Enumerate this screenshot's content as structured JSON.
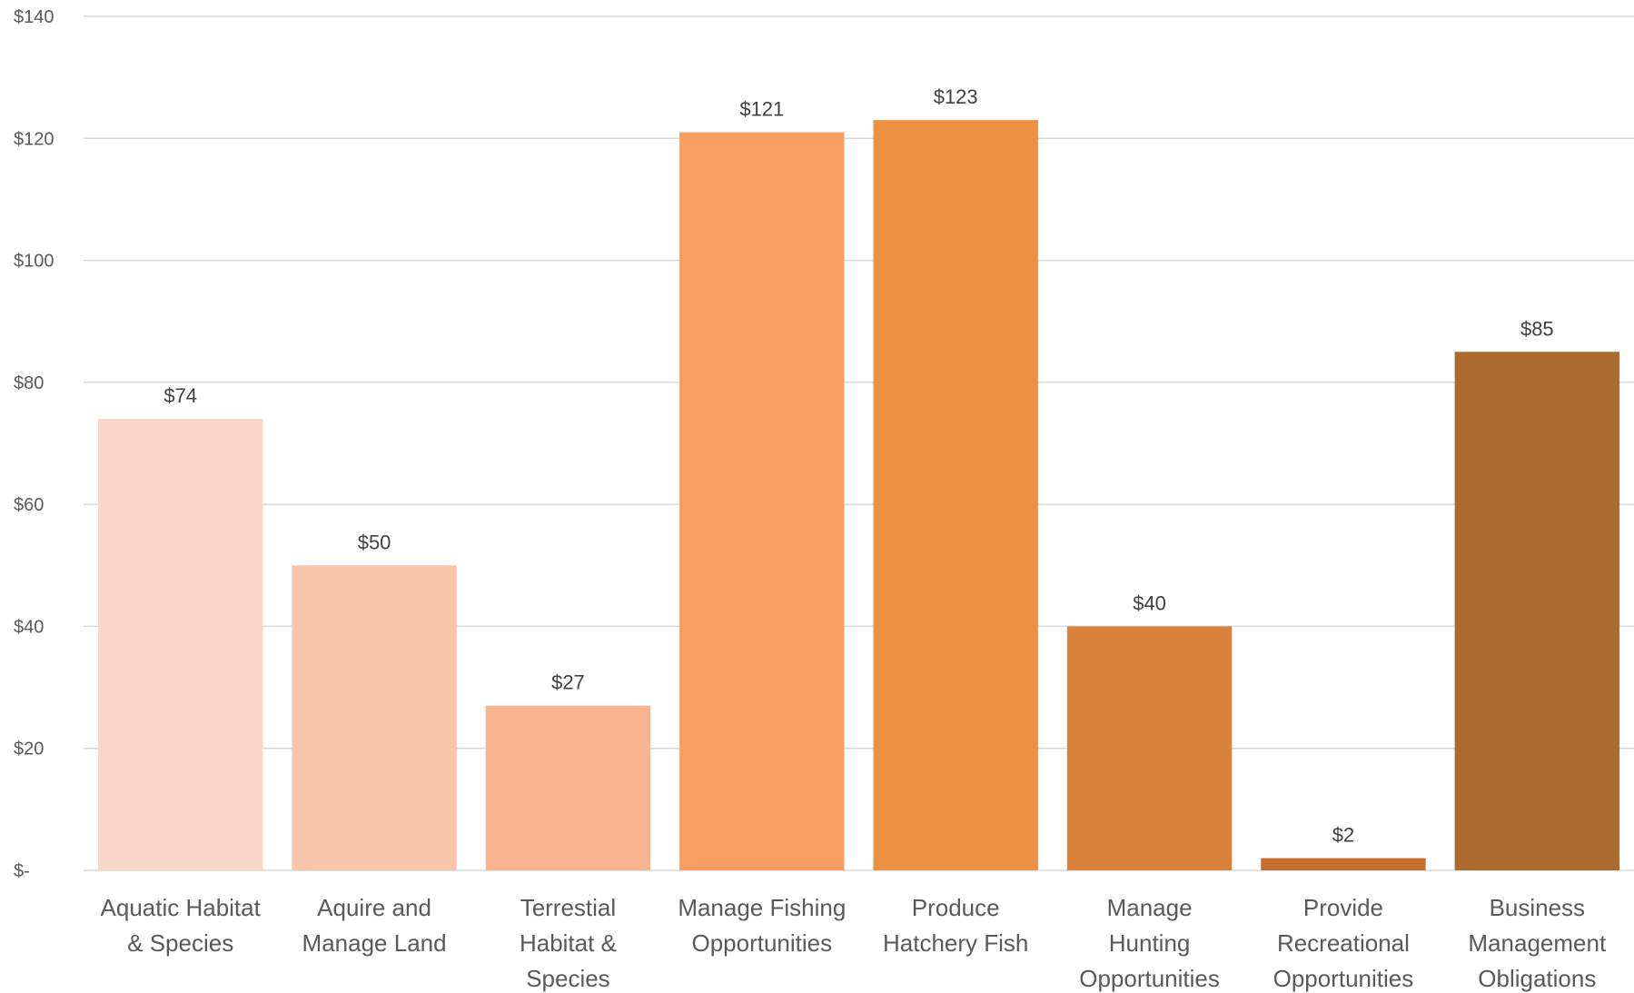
{
  "chart_data": {
    "type": "bar",
    "title": "",
    "xlabel": "",
    "ylabel": "",
    "ylim": [
      0,
      140
    ],
    "grid": true,
    "y_ticks": [
      {
        "value": 0,
        "label": "$-"
      },
      {
        "value": 20,
        "label": "$20"
      },
      {
        "value": 40,
        "label": "$40"
      },
      {
        "value": 60,
        "label": "$60"
      },
      {
        "value": 80,
        "label": "$80"
      },
      {
        "value": 100,
        "label": "$100"
      },
      {
        "value": 120,
        "label": "$120"
      },
      {
        "value": 140,
        "label": "$140"
      }
    ],
    "categories": [
      "Aquatic Habitat & Species",
      "Aquire and Manage Land",
      "Terrestial Habitat & Species",
      "Manage Fishing Opportunities",
      "Produce Hatchery Fish",
      "Manage Hunting Opportunities",
      "Provide Recreational Opportunities",
      "Business Management Obligations"
    ],
    "category_label_lines": [
      [
        "Aquatic Habitat",
        "& Species"
      ],
      [
        "Aquire and",
        "Manage Land"
      ],
      [
        "Terrestial",
        "Habitat &",
        "Species"
      ],
      [
        "Manage Fishing",
        "Opportunities"
      ],
      [
        "Produce",
        "Hatchery Fish"
      ],
      [
        "Manage",
        "Hunting",
        "Opportunities"
      ],
      [
        "Provide",
        "Recreational",
        "Opportunities"
      ],
      [
        "Business",
        "Management",
        "Obligations"
      ]
    ],
    "values": [
      74,
      50,
      27,
      121,
      123,
      40,
      2,
      85
    ],
    "data_labels": [
      "$74",
      "$50",
      "$27",
      "$121",
      "$123",
      "$40",
      "$2",
      "$85"
    ],
    "colors": [
      "#f8d7c6",
      "#f8c5aa",
      "#f7b48f",
      "#f69e62",
      "#ec9044",
      "#da823b",
      "#c56f2e",
      "#ac6a2e"
    ]
  }
}
